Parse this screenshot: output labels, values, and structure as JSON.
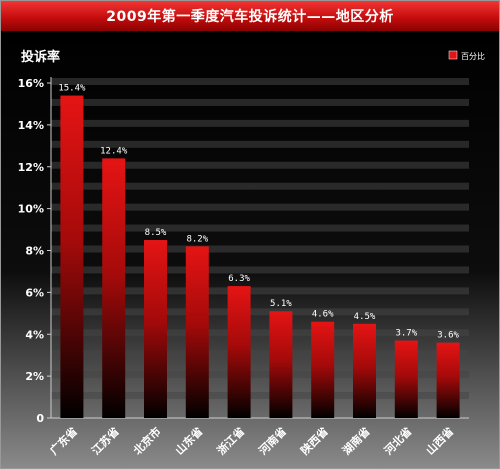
{
  "title": "2009年第一季度汽车投诉统计——地区分析",
  "colors": {
    "bar_top": "#e51414",
    "bar_bottom": "#000000",
    "text": "#ffffff",
    "stripe": "#454545",
    "bg_top": "#000000",
    "bg_bottom": "#8a8a8a"
  },
  "chart_data": {
    "type": "bar",
    "title": "2009年第一季度汽车投诉统计——地区分析",
    "ylabel": "投诉率",
    "xlabel": "",
    "ylim": [
      0,
      16
    ],
    "yticks": [
      "0",
      "2%",
      "4%",
      "6%",
      "8%",
      "10%",
      "12%",
      "14%",
      "16%"
    ],
    "categories": [
      "广东省",
      "江苏省",
      "北京市",
      "山东省",
      "浙江省",
      "河南省",
      "陕西省",
      "湖南省",
      "河北省",
      "山西省"
    ],
    "values": [
      15.4,
      12.4,
      8.5,
      8.2,
      6.3,
      5.1,
      4.6,
      4.5,
      3.7,
      3.6
    ],
    "value_labels": [
      "15.4%",
      "12.4%",
      "8.5%",
      "8.2%",
      "6.3%",
      "5.1%",
      "4.6%",
      "4.5%",
      "3.7%",
      "3.6%"
    ],
    "legend": {
      "entries": [
        "百分比"
      ],
      "placement": "top-right"
    },
    "grid": "horizontal-stripes"
  }
}
